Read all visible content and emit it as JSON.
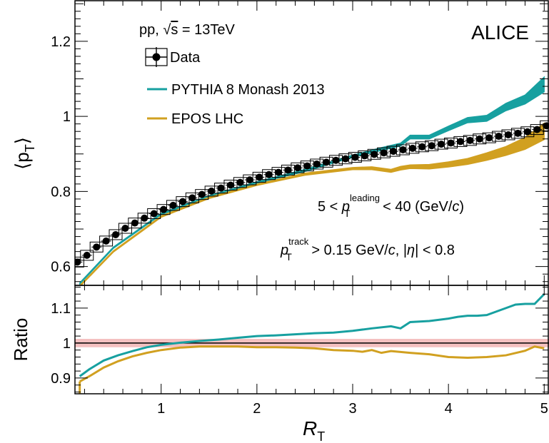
{
  "chart_data": [
    {
      "type": "scatter",
      "panel": "top",
      "xlim": [
        0.1,
        5.05
      ],
      "ylim": [
        0.55,
        1.31
      ],
      "ylabel_main": "⟨p",
      "ylabel_sub": "T",
      "ylabel_close": "⟩",
      "yticks": [
        0.6,
        0.8,
        1.0,
        1.2
      ],
      "ytick_labels": [
        "0.6",
        "0.8",
        "1",
        "1.2"
      ],
      "grid": false,
      "legend_position": "top-left",
      "experiment": "ALICE",
      "system_prefix": "pp,",
      "system_sqrt": "√",
      "system_s": "s",
      "system_energy": "= 13TeV",
      "cut1": {
        "pre": "5 < ",
        "p": "p",
        "sub": "T",
        "sup": "leading",
        "post": " < 40 (GeV/",
        "c": "c",
        "close": ")"
      },
      "cut2": {
        "p": "p",
        "sub": "T",
        "sup": "track",
        "post1": " > 0.15 GeV/",
        "c": "c",
        "post2": ", |",
        "eta": "η",
        "post3": "| < 0.8"
      },
      "series": [
        {
          "name": "Data",
          "color": "#000000",
          "x": [
            0.125,
            0.225,
            0.325,
            0.425,
            0.525,
            0.625,
            0.725,
            0.825,
            0.925,
            1.025,
            1.125,
            1.225,
            1.325,
            1.425,
            1.525,
            1.625,
            1.725,
            1.825,
            1.925,
            2.025,
            2.125,
            2.225,
            2.325,
            2.425,
            2.525,
            2.625,
            2.725,
            2.825,
            2.925,
            3.025,
            3.125,
            3.225,
            3.325,
            3.425,
            3.525,
            3.625,
            3.725,
            3.825,
            3.925,
            4.025,
            4.125,
            4.225,
            4.325,
            4.425,
            4.525,
            4.625,
            4.725,
            4.825,
            4.925,
            5.025
          ],
          "y": [
            0.612,
            0.63,
            0.652,
            0.668,
            0.685,
            0.702,
            0.716,
            0.729,
            0.741,
            0.752,
            0.763,
            0.773,
            0.783,
            0.792,
            0.801,
            0.809,
            0.817,
            0.824,
            0.831,
            0.838,
            0.845,
            0.851,
            0.857,
            0.863,
            0.868,
            0.873,
            0.878,
            0.883,
            0.887,
            0.891,
            0.895,
            0.899,
            0.903,
            0.907,
            0.911,
            0.915,
            0.919,
            0.922,
            0.926,
            0.929,
            0.933,
            0.936,
            0.94,
            0.943,
            0.947,
            0.951,
            0.955,
            0.959,
            0.965,
            0.975
          ]
        },
        {
          "name": "PYTHIA 8 Monash 2013",
          "color": "#17a0a0",
          "x": [
            0.15,
            0.5,
            1.0,
            1.5,
            2.0,
            2.5,
            3.0,
            3.3,
            3.5,
            3.6,
            3.8,
            4.0,
            4.2,
            4.4,
            4.6,
            4.8,
            5.0
          ],
          "y": [
            0.555,
            0.65,
            0.74,
            0.787,
            0.824,
            0.856,
            0.894,
            0.913,
            0.925,
            0.945,
            0.945,
            0.968,
            0.99,
            0.995,
            1.025,
            1.045,
            1.085
          ],
          "band_halfwidth": [
            0.002,
            0.002,
            0.002,
            0.002,
            0.002,
            0.003,
            0.003,
            0.004,
            0.004,
            0.005,
            0.005,
            0.006,
            0.007,
            0.008,
            0.01,
            0.012,
            0.02
          ]
        },
        {
          "name": "EPOS LHC",
          "color": "#d1a020",
          "x": [
            0.15,
            0.5,
            1.0,
            1.5,
            2.0,
            2.5,
            3.0,
            3.2,
            3.4,
            3.5,
            3.6,
            3.8,
            4.0,
            4.2,
            4.4,
            4.6,
            4.8,
            5.0
          ],
          "y": [
            0.548,
            0.64,
            0.733,
            0.783,
            0.818,
            0.846,
            0.861,
            0.862,
            0.855,
            0.862,
            0.866,
            0.866,
            0.872,
            0.88,
            0.893,
            0.908,
            0.928,
            0.96
          ],
          "band_halfwidth": [
            0.002,
            0.002,
            0.002,
            0.002,
            0.002,
            0.003,
            0.003,
            0.004,
            0.004,
            0.005,
            0.005,
            0.006,
            0.007,
            0.008,
            0.01,
            0.012,
            0.016,
            0.022
          ]
        }
      ]
    },
    {
      "type": "line",
      "panel": "bottom",
      "xlim": [
        0.1,
        5.05
      ],
      "ylim": [
        0.855,
        1.165
      ],
      "ylabel": "Ratio",
      "xlabel_main": "R",
      "xlabel_sub": "T",
      "xticks": [
        1,
        2,
        3,
        4,
        5
      ],
      "xtick_labels": [
        "1",
        "2",
        "3",
        "4",
        "5"
      ],
      "yticks": [
        0.9,
        1.0,
        1.1
      ],
      "ytick_labels": [
        "0.9",
        "1",
        "1.1"
      ],
      "reference_line": 1.0,
      "data_uncertainty_band": {
        "color": "#f4c0c0",
        "halfwidth": 0.012
      },
      "series": [
        {
          "name": "PYTHIA 8 Monash 2013",
          "color": "#17a0a0",
          "x": [
            0.15,
            0.25,
            0.4,
            0.55,
            0.7,
            0.85,
            1.0,
            1.2,
            1.4,
            1.6,
            1.8,
            2.0,
            2.2,
            2.4,
            2.6,
            2.8,
            3.0,
            3.2,
            3.4,
            3.5,
            3.6,
            3.8,
            4.0,
            4.1,
            4.2,
            4.3,
            4.4,
            4.5,
            4.6,
            4.7,
            4.8,
            4.9,
            5.0
          ],
          "y": [
            0.905,
            0.925,
            0.95,
            0.965,
            0.977,
            0.988,
            0.995,
            1.001,
            1.006,
            1.01,
            1.015,
            1.02,
            1.022,
            1.025,
            1.028,
            1.03,
            1.035,
            1.042,
            1.048,
            1.042,
            1.06,
            1.063,
            1.07,
            1.075,
            1.078,
            1.078,
            1.08,
            1.09,
            1.1,
            1.11,
            1.112,
            1.112,
            1.14
          ]
        },
        {
          "name": "EPOS LHC",
          "color": "#d1a020",
          "x": [
            0.15,
            0.25,
            0.4,
            0.55,
            0.7,
            0.85,
            1.0,
            1.2,
            1.4,
            1.6,
            1.8,
            2.0,
            2.2,
            2.4,
            2.6,
            2.8,
            3.0,
            3.1,
            3.2,
            3.3,
            3.4,
            3.6,
            3.8,
            4.0,
            4.2,
            4.4,
            4.6,
            4.8,
            4.9,
            5.0
          ],
          "y": [
            0.89,
            0.905,
            0.93,
            0.948,
            0.962,
            0.972,
            0.98,
            0.987,
            0.99,
            0.99,
            0.99,
            0.988,
            0.988,
            0.987,
            0.985,
            0.98,
            0.978,
            0.975,
            0.98,
            0.972,
            0.977,
            0.972,
            0.968,
            0.96,
            0.958,
            0.96,
            0.965,
            0.978,
            0.99,
            0.985
          ]
        }
      ]
    }
  ]
}
